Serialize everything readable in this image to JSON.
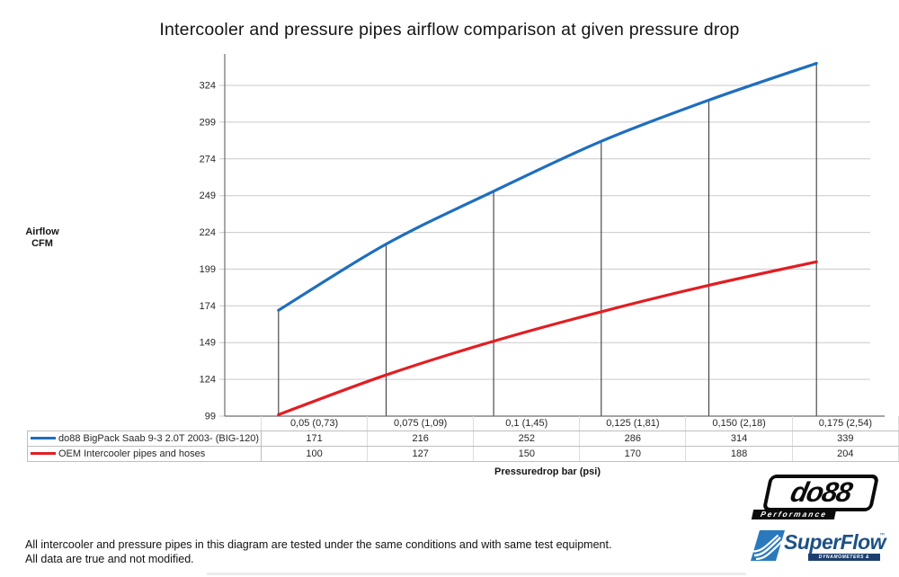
{
  "title": "Intercooler and pressure pipes airflow comparison at given pressure drop",
  "y_axis_label": {
    "line1": "Airflow",
    "line2": "CFM"
  },
  "x_axis_label": "Pressuredrop bar (psi)",
  "chart_data": {
    "type": "line",
    "title": "Intercooler and pressure pipes airflow comparison at given pressure drop",
    "xlabel": "Pressuredrop bar (psi)",
    "ylabel": "Airflow CFM",
    "categories": [
      "0,05 (0,73)",
      "0,075 (1,09)",
      "0,1 (1,45)",
      "0,125 (1,81)",
      "0,150 (2,18)",
      "0,175 (2,54)"
    ],
    "series": [
      {
        "name": "do88 BigPack Saab 9-3 2.0T 2003- (BIG-120)",
        "color": "#1e6ebe",
        "values": [
          171,
          216,
          252,
          286,
          314,
          339
        ]
      },
      {
        "name": "OEM Intercooler pipes and hoses",
        "color": "#e11e23",
        "values": [
          100,
          127,
          150,
          170,
          188,
          204
        ]
      }
    ],
    "yticks": [
      99,
      124,
      149,
      174,
      199,
      224,
      249,
      274,
      299,
      324
    ],
    "ylim": [
      99,
      345
    ],
    "grid": true,
    "legend_position": "table-left",
    "connectors_to_first_series": true
  },
  "footer": {
    "line1": "All intercooler and pressure pipes in this diagram are tested under the same conditions and with same test equipment.",
    "line2": "All data are true and not modified."
  },
  "logos": {
    "do88": {
      "name": "do88",
      "tagline": "Performance"
    },
    "superflow": {
      "name": "SuperFlow",
      "trademark": "™",
      "tagline": "DYNAMOMETERS & FLOWBENCHES"
    }
  },
  "colors": {
    "blue_series": "#1e6ebe",
    "red_series": "#e11e23",
    "gridline": "#c9c9c9",
    "axis": "#6e6e6e",
    "connector": "#3c3c3c",
    "table_border": "#bfbfbf",
    "text": "#262626"
  }
}
